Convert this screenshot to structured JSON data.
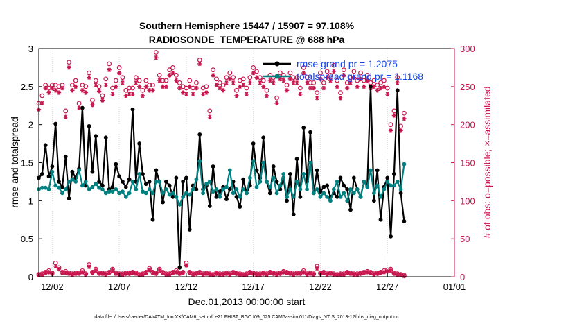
{
  "chart_data": {
    "type": "line",
    "title_line1": "Southern Hemisphere 15447 / 15907 = 97.108%",
    "title_line2": "RADIOSONDE_TEMPERATURE @ 688 hPa",
    "xlabel": "Dec.01,2013 00:00:00 start",
    "ylabel_left": "rmse and totalspread",
    "ylabel_right": "# of obs: o=possible; ×=assimilated",
    "footnote": "data file: /Users/raeder/DAI/ATM_forcXX/CAM6_setup/f.e21.FHIST_BGC.f09_025.CAM6assim.011/Diags_NTrS_2013-12/obs_diag_output.nc",
    "x_ticks": [
      {
        "day": 1,
        "label": "12/02"
      },
      {
        "day": 6,
        "label": "12/07"
      },
      {
        "day": 11,
        "label": "12/12"
      },
      {
        "day": 16,
        "label": "12/17"
      },
      {
        "day": 21,
        "label": "12/22"
      },
      {
        "day": 26,
        "label": "12/27"
      },
      {
        "day": 31,
        "label": "01/01"
      }
    ],
    "xlim": [
      0,
      31
    ],
    "ylim_left": [
      0,
      3
    ],
    "yticks_left": [
      "0",
      "0.5",
      "1",
      "1.5",
      "2",
      "2.5",
      "3"
    ],
    "ylim_right": [
      0,
      300
    ],
    "yticks_right": [
      "0",
      "50",
      "100",
      "150",
      "200",
      "250",
      "300"
    ],
    "colors": {
      "rmse": "#000000",
      "spread": "#008080",
      "obs": "#c8164f",
      "legend_text": "#1546e6"
    },
    "legend": [
      {
        "name": "rmse",
        "label": "rmse grand pr = 1.2075"
      },
      {
        "name": "spread",
        "label": "totalspread grand pr = 1.1168"
      }
    ],
    "series": [
      {
        "name": "rmse",
        "x_start": 0,
        "x_step": 0.25,
        "values": [
          1.3,
          1.35,
          1.73,
          1.32,
          1.45,
          2.01,
          1.25,
          1.18,
          1.58,
          1.03,
          1.38,
          1.3,
          1.42,
          2.22,
          1.2,
          1.98,
          1.38,
          1.85,
          1.25,
          1.2,
          1.83,
          1.15,
          1.18,
          1.48,
          1.32,
          1.25,
          1.18,
          1.28,
          2.2,
          1.25,
          1.75,
          1.35,
          1.22,
          1.25,
          0.75,
          1.4,
          1.25,
          0.98,
          1.25,
          1.2,
          1.05,
          1.3,
          0.12,
          1.25,
          1.3,
          0.62,
          1.2,
          1.15,
          1.87,
          1.15,
          1.2,
          0.93,
          1.45,
          1.05,
          1.12,
          1.18,
          1.02,
          1.15,
          1.25,
          1.05,
          0.92,
          1.28,
          1.1,
          1.2,
          1.75,
          1.4,
          1.3,
          1.83,
          1.25,
          1.1,
          1.45,
          1.25,
          1.15,
          1.3,
          1.0,
          1.35,
          0.82,
          1.55,
          1.05,
          1.96,
          1.25,
          1.9,
          1.1,
          1.4,
          1.12,
          1.18,
          1.2,
          1.05,
          1.1,
          1.05,
          1.3,
          1.2,
          1.15,
          0.88,
          1.3,
          1.15,
          1.05,
          1.25,
          1.2,
          2.5,
          1.0,
          1.4,
          0.75,
          1.18,
          1.3,
          0.53,
          1.35,
          2.45,
          1.1,
          0.73
        ]
      },
      {
        "name": "spread",
        "x_start": 0,
        "x_step": 0.25,
        "values": [
          1.15,
          1.17,
          1.17,
          1.15,
          1.38,
          1.2,
          1.17,
          1.1,
          1.15,
          1.25,
          1.28,
          1.25,
          1.4,
          1.2,
          1.25,
          1.15,
          1.18,
          1.22,
          1.17,
          1.15,
          1.1,
          1.12,
          1.12,
          1.15,
          1.1,
          1.12,
          1.05,
          1.1,
          1.25,
          1.15,
          1.35,
          1.12,
          1.1,
          1.15,
          1.1,
          1.25,
          1.25,
          1.1,
          1.15,
          1.08,
          1.1,
          1.05,
          0.95,
          1.05,
          1.1,
          1.08,
          1.15,
          1.28,
          1.52,
          1.1,
          1.22,
          1.25,
          1.12,
          1.15,
          1.05,
          1.15,
          1.18,
          1.4,
          1.1,
          1.15,
          1.05,
          1.15,
          1.1,
          1.3,
          1.52,
          1.18,
          1.25,
          1.5,
          1.25,
          1.18,
          1.3,
          1.1,
          1.2,
          1.35,
          1.05,
          1.15,
          1.05,
          1.25,
          1.15,
          1.35,
          1.15,
          1.5,
          1.1,
          1.15,
          1.05,
          1.1,
          1.05,
          1.0,
          1.15,
          1.25,
          1.05,
          1.1,
          1.0,
          1.15,
          1.1,
          1.15,
          1.05,
          1.25,
          1.18,
          1.4,
          1.1,
          1.2,
          1.05,
          1.15,
          1.25,
          1.2,
          1.2,
          1.25,
          1.15,
          1.48
        ]
      },
      {
        "name": "obs_possible",
        "x_start": 0,
        "x_step": 0.25,
        "values": [
          228,
          238,
          252,
          248,
          252,
          252,
          250,
          252,
          218,
          282,
          252,
          258,
          228,
          252,
          250,
          268,
          232,
          258,
          250,
          238,
          260,
          280,
          248,
          258,
          275,
          262,
          245,
          248,
          248,
          262,
          258,
          245,
          258,
          252,
          252,
          295,
          265,
          258,
          258,
          272,
          275,
          265,
          255,
          250,
          248,
          258,
          248,
          255,
          285,
          248,
          250,
          218,
          272,
          260,
          255,
          252,
          262,
          268,
          262,
          245,
          258,
          260,
          248,
          262,
          275,
          270,
          262,
          258,
          245,
          265,
          262,
          235,
          268,
          265,
          252,
          268,
          262,
          262,
          248,
          275,
          262,
          255,
          255,
          242,
          268,
          255,
          270,
          265,
          278,
          258,
          242,
          272,
          255,
          262,
          270,
          258,
          268,
          258,
          265,
          255,
          258,
          252,
          255,
          258,
          248,
          200,
          218,
          262,
          198,
          215
        ]
      },
      {
        "name": "obs_assimilated",
        "x_start": 0,
        "x_step": 0.25,
        "values": [
          220,
          228,
          248,
          242,
          248,
          245,
          242,
          248,
          210,
          275,
          245,
          250,
          222,
          245,
          242,
          262,
          226,
          252,
          244,
          232,
          252,
          272,
          240,
          250,
          268,
          255,
          238,
          240,
          240,
          255,
          250,
          238,
          250,
          245,
          245,
          288,
          258,
          250,
          250,
          265,
          268,
          258,
          248,
          242,
          240,
          250,
          240,
          248,
          280,
          240,
          242,
          210,
          265,
          252,
          248,
          245,
          255,
          260,
          255,
          238,
          250,
          252,
          240,
          255,
          268,
          262,
          255,
          250,
          238,
          258,
          255,
          228,
          260,
          258,
          245,
          260,
          255,
          255,
          240,
          268,
          255,
          248,
          248,
          235,
          260,
          248,
          262,
          258,
          270,
          250,
          235,
          265,
          248,
          255,
          262,
          250,
          260,
          250,
          258,
          248,
          250,
          245,
          248,
          250,
          240,
          192,
          212,
          255,
          192,
          208
        ]
      },
      {
        "name": "obs_possible_low",
        "x_start": 0,
        "x_step": 0.25,
        "values": [
          3,
          4,
          6,
          8,
          5,
          18,
          12,
          6,
          7,
          5,
          4,
          5,
          5,
          8,
          4,
          16,
          6,
          10,
          5,
          5,
          4,
          6,
          10,
          5,
          4,
          4,
          5,
          5,
          6,
          5,
          3,
          4,
          6,
          11,
          6,
          5,
          10,
          6,
          4,
          4,
          6,
          8,
          5,
          6,
          18,
          6,
          4,
          5,
          6,
          4,
          5,
          4,
          3,
          5,
          4,
          4,
          5,
          4,
          6,
          5,
          4,
          3,
          4,
          6,
          5,
          4,
          4,
          5,
          4,
          6,
          5,
          4,
          5,
          7,
          6,
          5,
          4,
          5,
          5,
          8,
          4,
          5,
          4,
          14,
          5,
          6,
          4,
          5,
          4,
          3,
          4,
          4,
          6,
          5,
          4,
          4,
          5,
          6,
          7,
          6,
          4,
          5,
          6,
          8,
          9,
          10,
          5,
          4,
          3,
          2
        ]
      },
      {
        "name": "obs_assimilated_low",
        "x_start": 0,
        "x_step": 0.25,
        "values": [
          2,
          3,
          5,
          6,
          4,
          14,
          10,
          5,
          5,
          4,
          3,
          4,
          4,
          6,
          3,
          13,
          5,
          8,
          4,
          4,
          3,
          5,
          8,
          4,
          3,
          3,
          4,
          4,
          5,
          4,
          2,
          3,
          5,
          9,
          5,
          4,
          8,
          5,
          3,
          3,
          5,
          6,
          4,
          5,
          15,
          5,
          3,
          4,
          5,
          3,
          4,
          3,
          2,
          4,
          3,
          3,
          4,
          3,
          5,
          4,
          3,
          2,
          3,
          5,
          4,
          3,
          3,
          4,
          3,
          5,
          4,
          3,
          4,
          6,
          5,
          4,
          3,
          4,
          4,
          6,
          3,
          4,
          3,
          11,
          4,
          5,
          3,
          4,
          3,
          2,
          3,
          3,
          5,
          4,
          3,
          3,
          4,
          5,
          6,
          5,
          3,
          4,
          5,
          6,
          7,
          8,
          4,
          3,
          2,
          1
        ]
      }
    ]
  }
}
